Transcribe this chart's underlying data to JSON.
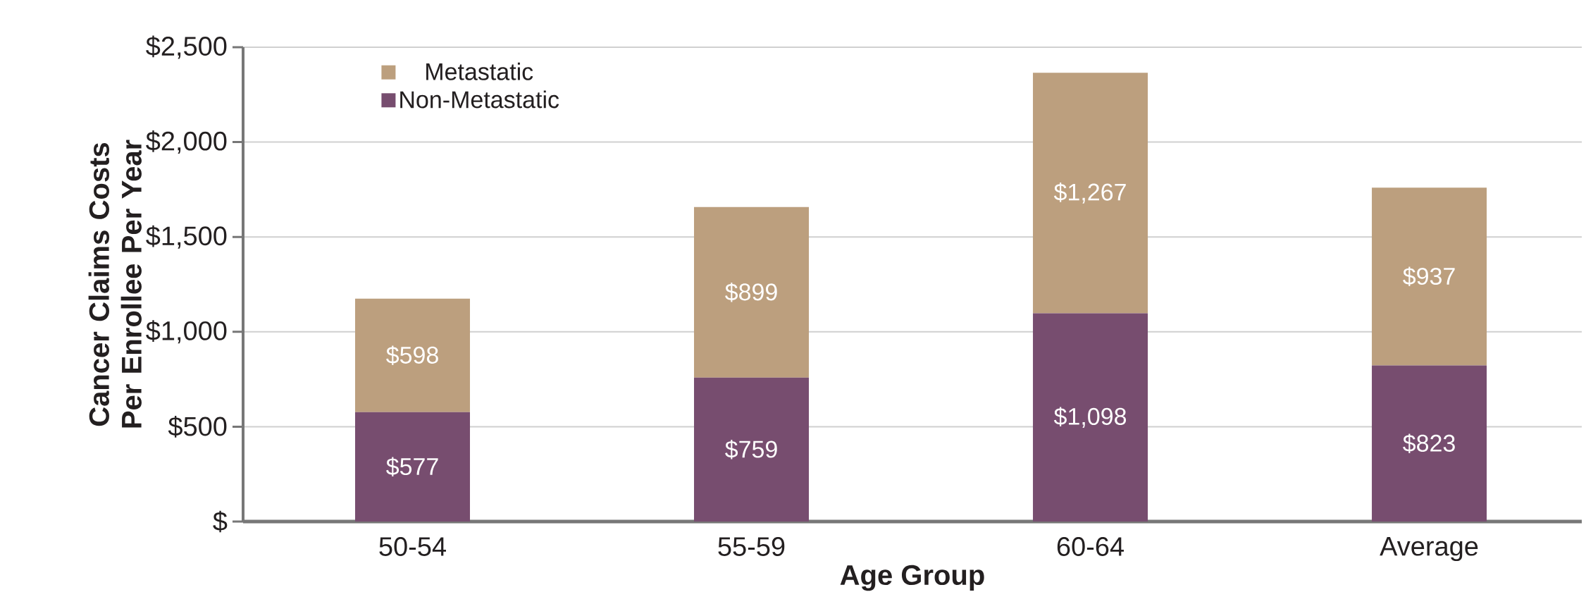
{
  "chart_data": {
    "type": "bar",
    "stacked": true,
    "xlabel": "Age Group",
    "ylabel": "Cancer Claims Costs Per Enrollee Per Year",
    "categories": [
      "50-54",
      "55-59",
      "60-64",
      "Average"
    ],
    "series": [
      {
        "name": "Non-Metastatic",
        "color": "#774d6f",
        "values": [
          577,
          759,
          1098,
          823
        ],
        "value_labels": [
          "$577",
          "$759",
          "$1,098",
          "$823"
        ]
      },
      {
        "name": "Metastatic",
        "color": "#bc9f7e",
        "values": [
          598,
          899,
          1267,
          937
        ],
        "value_labels": [
          "$598",
          "$899",
          "$1,267",
          "$937"
        ]
      }
    ],
    "ylim": [
      0,
      2500
    ],
    "yticks": [
      {
        "value": 0,
        "label": "$"
      },
      {
        "value": 500,
        "label": "$500"
      },
      {
        "value": 1000,
        "label": "$1,000"
      },
      {
        "value": 1500,
        "label": "$1,500"
      },
      {
        "value": 2000,
        "label": "$2,000"
      },
      {
        "value": 2500,
        "label": "$2,500"
      }
    ],
    "grid": "y",
    "legend": "top left"
  }
}
